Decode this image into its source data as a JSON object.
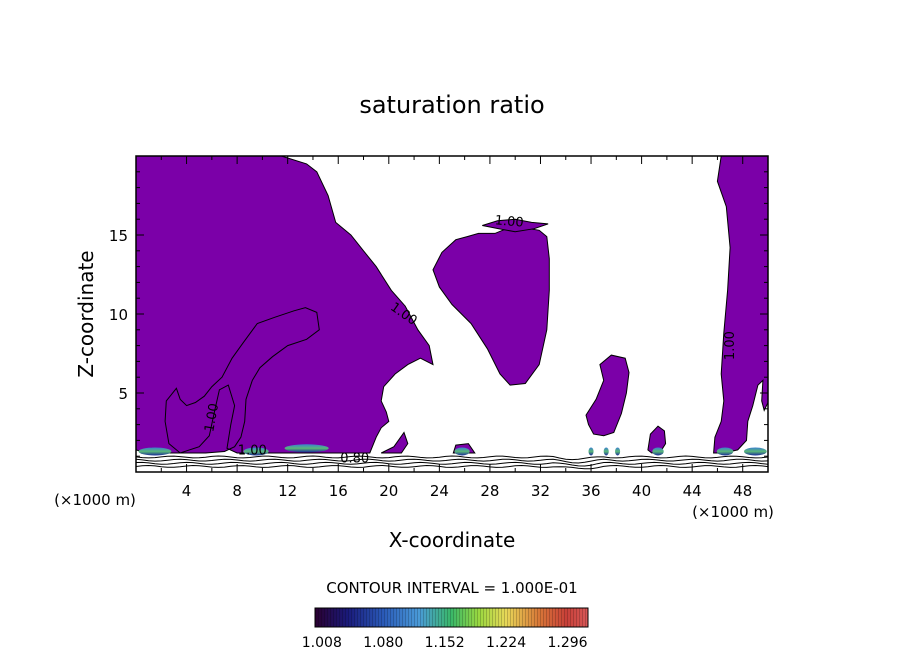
{
  "chart_data": {
    "type": "contour",
    "title": "saturation ratio",
    "xlabel": "X-coordinate",
    "ylabel": "Z-coordinate",
    "x_unit_label": "(×1000 m)",
    "xlim": [
      0,
      50
    ],
    "ylim": [
      0,
      20
    ],
    "xticks": [
      4,
      8,
      12,
      16,
      20,
      24,
      28,
      32,
      36,
      40,
      44,
      48
    ],
    "yticks": [
      5,
      10,
      15
    ],
    "contour_interval_text": "CONTOUR INTERVAL = 1.000E-01",
    "contour_labels": [
      {
        "text": "1.00",
        "x": 29.5,
        "z": 15.6,
        "rotate": 5
      },
      {
        "text": "1.00",
        "x": 21.0,
        "z": 9.8,
        "rotate": 35
      },
      {
        "text": "1.00",
        "x": 47.3,
        "z": 8.0,
        "rotate": -90
      },
      {
        "text": "1.00",
        "x": 6.3,
        "z": 3.4,
        "rotate": -80
      },
      {
        "text": "1.00",
        "x": 9.2,
        "z": 1.1,
        "rotate": 0
      },
      {
        "text": "0.80",
        "x": 17.3,
        "z": 0.6,
        "rotate": 0
      }
    ],
    "colorbar": {
      "ticks": [
        "1.008",
        "1.080",
        "1.152",
        "1.224",
        "1.296"
      ],
      "range": [
        1.0,
        1.32
      ]
    },
    "supersaturated_fill_color": "#7b00a8",
    "regions": [
      {
        "name": "left-upper-mass",
        "points": [
          [
            0,
            20
          ],
          [
            11.5,
            20
          ],
          [
            13.5,
            19.5
          ],
          [
            14.3,
            19
          ],
          [
            15.2,
            17.5
          ],
          [
            15.8,
            15.8
          ],
          [
            17,
            15
          ],
          [
            18,
            14
          ],
          [
            19,
            13
          ],
          [
            20.2,
            11.5
          ],
          [
            21.3,
            10.5
          ],
          [
            22.3,
            9
          ],
          [
            23.2,
            8
          ],
          [
            23.5,
            6.8
          ],
          [
            22.5,
            7.2
          ],
          [
            21.5,
            6.8
          ],
          [
            20.5,
            6.2
          ],
          [
            19.6,
            5.4
          ],
          [
            19.4,
            4.5
          ],
          [
            19.8,
            3.8
          ],
          [
            20,
            3.2
          ],
          [
            19.4,
            2.8
          ],
          [
            19,
            2.2
          ],
          [
            18.5,
            1.2
          ],
          [
            16,
            1.2
          ],
          [
            14,
            1.2
          ],
          [
            12,
            1.2
          ],
          [
            10,
            1.2
          ],
          [
            8,
            1.2
          ],
          [
            7.2,
            1.5
          ],
          [
            7.5,
            3
          ],
          [
            7.8,
            4.2
          ],
          [
            7.3,
            5.5
          ],
          [
            6.6,
            5.2
          ],
          [
            6.2,
            3.8
          ],
          [
            5.8,
            2.3
          ],
          [
            5,
            1.6
          ],
          [
            3.5,
            1.2
          ],
          [
            2.6,
            1.8
          ],
          [
            2.3,
            3.2
          ],
          [
            2.4,
            4.5
          ],
          [
            2.8,
            4.9
          ],
          [
            3.2,
            5.3
          ],
          [
            3.5,
            4.6
          ],
          [
            4,
            4.2
          ],
          [
            4.7,
            4.4
          ],
          [
            5.4,
            4.8
          ],
          [
            6,
            5.4
          ],
          [
            6.8,
            6
          ],
          [
            7.6,
            7.2
          ],
          [
            8.5,
            8.2
          ],
          [
            9.6,
            9.4
          ],
          [
            11,
            9.8
          ],
          [
            12.5,
            10.2
          ],
          [
            13.4,
            10.4
          ],
          [
            14.3,
            10.1
          ],
          [
            14.5,
            9
          ],
          [
            13.5,
            8.4
          ],
          [
            12,
            8
          ],
          [
            10.8,
            7.3
          ],
          [
            9.8,
            6.6
          ],
          [
            9.2,
            5.8
          ],
          [
            8.7,
            4.6
          ],
          [
            8.6,
            3.2
          ],
          [
            8.3,
            2.2
          ],
          [
            7.8,
            1.6
          ],
          [
            7,
            1.3
          ],
          [
            5.5,
            1.2
          ],
          [
            3.8,
            1.2
          ],
          [
            2.3,
            1.2
          ],
          [
            1.2,
            1.5
          ],
          [
            0.4,
            1.3
          ],
          [
            0,
            1.4
          ]
        ]
      },
      {
        "name": "central-mass",
        "points": [
          [
            23.5,
            12.8
          ],
          [
            24,
            11.7
          ],
          [
            25,
            10.6
          ],
          [
            26.5,
            9.4
          ],
          [
            27.8,
            7.8
          ],
          [
            28.8,
            6.2
          ],
          [
            29.6,
            5.5
          ],
          [
            30.8,
            5.6
          ],
          [
            31.9,
            6.8
          ],
          [
            32.5,
            9
          ],
          [
            32.7,
            11.5
          ],
          [
            32.7,
            13.5
          ],
          [
            32.5,
            14.9
          ],
          [
            31.9,
            15.3
          ],
          [
            30.4,
            15.5
          ],
          [
            29.3,
            15.4
          ],
          [
            28.4,
            15.1
          ],
          [
            27.1,
            15.1
          ],
          [
            26.2,
            14.9
          ],
          [
            25.3,
            14.7
          ],
          [
            24.2,
            13.9
          ]
        ]
      },
      {
        "name": "upper-tongue",
        "points": [
          [
            27.4,
            15.6
          ],
          [
            28.6,
            15.9
          ],
          [
            30,
            16
          ],
          [
            31.3,
            15.8
          ],
          [
            32.6,
            15.7
          ],
          [
            31.5,
            15.4
          ],
          [
            30,
            15.2
          ],
          [
            28.7,
            15.4
          ]
        ]
      },
      {
        "name": "right-blob",
        "points": [
          [
            35.6,
            3.6
          ],
          [
            36.4,
            4.6
          ],
          [
            37,
            5.8
          ],
          [
            36.7,
            6.8
          ],
          [
            37.6,
            7.4
          ],
          [
            38.7,
            7.2
          ],
          [
            39,
            6.3
          ],
          [
            38.8,
            5
          ],
          [
            38.4,
            3.7
          ],
          [
            37.8,
            2.5
          ],
          [
            37,
            2.3
          ],
          [
            36.2,
            2.4
          ],
          [
            35.8,
            3
          ]
        ]
      },
      {
        "name": "small-blob",
        "points": [
          [
            40.5,
            1.4
          ],
          [
            40.7,
            2.4
          ],
          [
            41.3,
            2.9
          ],
          [
            41.8,
            2.6
          ],
          [
            41.9,
            1.8
          ],
          [
            41.5,
            1.3
          ],
          [
            40.8,
            1.2
          ]
        ]
      },
      {
        "name": "right-column",
        "points": [
          [
            45.7,
            1.2
          ],
          [
            45.8,
            2.2
          ],
          [
            46.3,
            3.2
          ],
          [
            46.5,
            4.5
          ],
          [
            46.3,
            6.2
          ],
          [
            46.5,
            8.8
          ],
          [
            46.8,
            11.5
          ],
          [
            47,
            14.2
          ],
          [
            46.7,
            16.8
          ],
          [
            46,
            18.4
          ],
          [
            46.3,
            20
          ],
          [
            50,
            20
          ],
          [
            50,
            4.4
          ],
          [
            49.7,
            3.9
          ],
          [
            49.5,
            4.5
          ],
          [
            49.6,
            5.8
          ],
          [
            49.2,
            5.5
          ],
          [
            48.8,
            4.2
          ],
          [
            48.4,
            3.2
          ],
          [
            48.3,
            2
          ],
          [
            47.6,
            1.4
          ],
          [
            46.5,
            1.2
          ]
        ]
      },
      {
        "name": "patch-a",
        "points": [
          [
            19.4,
            1.2
          ],
          [
            20.4,
            1.6
          ],
          [
            21.2,
            2.5
          ],
          [
            21.5,
            1.8
          ],
          [
            21,
            1.2
          ]
        ]
      },
      {
        "name": "patch-b",
        "points": [
          [
            25.1,
            1.2
          ],
          [
            25.3,
            1.7
          ],
          [
            26.3,
            1.8
          ],
          [
            26.8,
            1.2
          ]
        ]
      }
    ],
    "blue_spots": [
      {
        "x": 1.5,
        "z": 1.3,
        "w": 2.6
      },
      {
        "x": 9.5,
        "z": 1.3,
        "w": 2.0
      },
      {
        "x": 13.5,
        "z": 1.5,
        "w": 3.5
      },
      {
        "x": 25.8,
        "z": 1.3,
        "w": 1.2
      },
      {
        "x": 36.0,
        "z": 1.3,
        "w": 0.4
      },
      {
        "x": 37.2,
        "z": 1.3,
        "w": 0.4
      },
      {
        "x": 38.1,
        "z": 1.3,
        "w": 0.4
      },
      {
        "x": 41.3,
        "z": 1.3,
        "w": 0.9
      },
      {
        "x": 46.6,
        "z": 1.3,
        "w": 1.3
      },
      {
        "x": 49.0,
        "z": 1.3,
        "w": 1.8
      }
    ]
  }
}
